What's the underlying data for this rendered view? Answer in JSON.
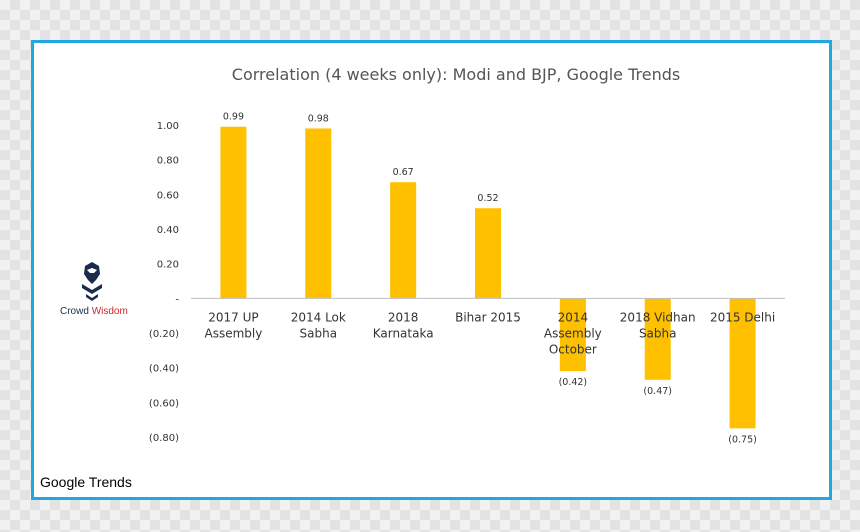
{
  "logo": {
    "word1": "Crowd",
    "word2": "Wisdom",
    "icon": "eagle-icon"
  },
  "source_label": "Google Trends",
  "colors": {
    "bar": "#ffc000",
    "frame": "#22a8e0",
    "axis": "#bfbfbf"
  },
  "chart_data": {
    "type": "bar",
    "title": "Correlation (4 weeks only): Modi and BJP, Google Trends",
    "xlabel": "",
    "ylabel": "",
    "ylim": [
      -0.8,
      1.0
    ],
    "grid": false,
    "legend": "none",
    "yticks": [
      {
        "value": 1.0,
        "label": "1.00"
      },
      {
        "value": 0.8,
        "label": "0.80"
      },
      {
        "value": 0.6,
        "label": "0.60"
      },
      {
        "value": 0.4,
        "label": "0.40"
      },
      {
        "value": 0.2,
        "label": "0.20"
      },
      {
        "value": 0.0,
        "label": "-"
      },
      {
        "value": -0.2,
        "label": "(0.20)"
      },
      {
        "value": -0.4,
        "label": "(0.40)"
      },
      {
        "value": -0.6,
        "label": "(0.60)"
      },
      {
        "value": -0.8,
        "label": "(0.80)"
      }
    ],
    "categories": [
      [
        "2017 UP",
        "Assembly"
      ],
      [
        "2014 Lok",
        "Sabha"
      ],
      [
        "2018",
        "Karnataka"
      ],
      [
        "Bihar 2015"
      ],
      [
        "2014",
        "Assembly",
        "October"
      ],
      [
        "2018 Vidhan",
        "Sabha"
      ],
      [
        "2015 Delhi"
      ]
    ],
    "values": [
      0.99,
      0.98,
      0.67,
      0.52,
      -0.42,
      -0.47,
      -0.75
    ],
    "data_labels": [
      "0.99",
      "0.98",
      "0.67",
      "0.52",
      "(0.42)",
      "(0.47)",
      "(0.75)"
    ]
  }
}
